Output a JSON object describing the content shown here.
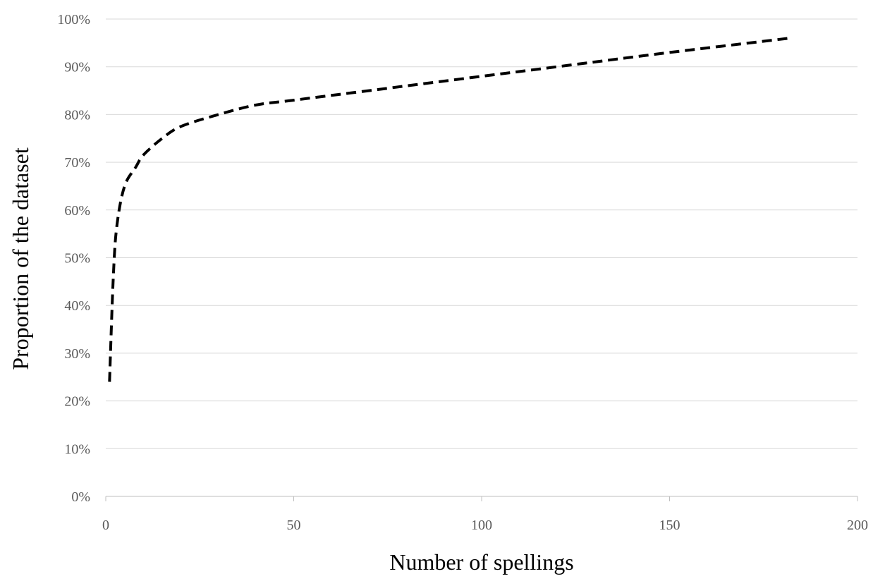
{
  "chart_data": {
    "type": "line",
    "xlabel": "Number of spellings",
    "ylabel": "Proportion of the dataset",
    "xlim": [
      0,
      200
    ],
    "ylim": [
      0,
      100
    ],
    "x_ticks": [
      0,
      50,
      100,
      150,
      200
    ],
    "y_ticks": [
      0,
      10,
      20,
      30,
      40,
      50,
      60,
      70,
      80,
      90,
      100
    ],
    "x_tick_labels": [
      "0",
      "50",
      "100",
      "150",
      "200"
    ],
    "y_tick_labels": [
      "0%",
      "10%",
      "20%",
      "30%",
      "40%",
      "50%",
      "60%",
      "70%",
      "80%",
      "90%",
      "100%"
    ],
    "grid": true,
    "legend": "none",
    "line_style": "dashed",
    "line_color": "#000000",
    "series": [
      {
        "x": [
          1,
          2,
          3,
          5,
          8,
          10,
          15,
          20,
          30,
          40,
          50,
          75,
          100,
          125,
          150,
          182
        ],
        "y": [
          24,
          46,
          57,
          65,
          69,
          71.5,
          75,
          77.5,
          80,
          82,
          83,
          85.5,
          88,
          90.5,
          93,
          96
        ]
      }
    ]
  }
}
